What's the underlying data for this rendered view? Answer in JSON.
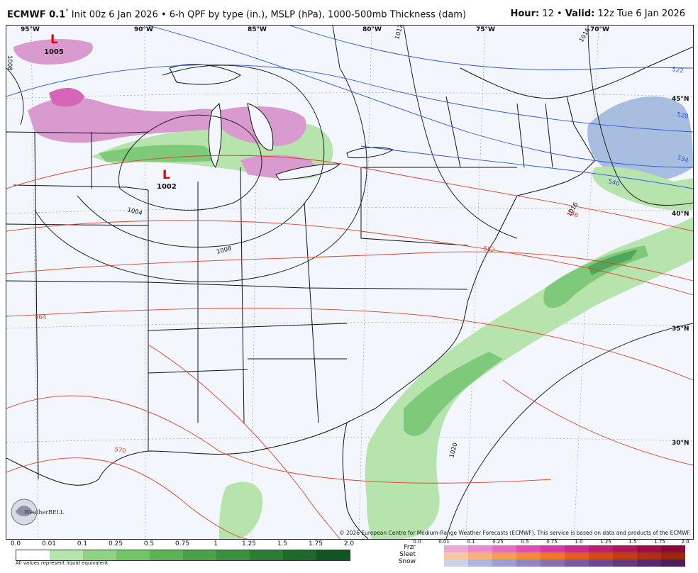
{
  "header": {
    "model": "ECMWF 0.1",
    "degree": "°",
    "description": "Init 00z 6 Jan 2026 • 6-h QPF by type (in.), MSLP (hPa), 1000-500mb Thickness (dam)",
    "hour_label": "Hour:",
    "hour_value": "12",
    "valid_label": "Valid:",
    "valid_value": "12z Tue 6 Jan 2026"
  },
  "map": {
    "longitudes": [
      "95°W",
      "90°W",
      "85°W",
      "80°W",
      "75°W",
      "70°W"
    ],
    "latitudes": [
      "45°N",
      "40°N",
      "35°N",
      "30°N"
    ],
    "lows": [
      {
        "symbol": "L",
        "pressure": "1005"
      },
      {
        "symbol": "L",
        "pressure": "1002"
      }
    ],
    "isobar_labels": [
      "1004",
      "1008",
      "1012",
      "1016",
      "1020",
      "1008",
      "1016"
    ],
    "thickness_labels_blue": [
      "522",
      "528",
      "534",
      "540"
    ],
    "thickness_labels_red": [
      "546",
      "552",
      "564",
      "570"
    ],
    "colors": {
      "rain": "#7ec97a",
      "rain_heavy": "#4fa85a",
      "snow": "#a8bee0",
      "mix": "#d99ad0",
      "mix_heavy": "#d665b8",
      "isobar": "#222222",
      "thickness_cold": "#2a55e0",
      "thickness_warm": "#e0402a",
      "low": "#e00000"
    }
  },
  "credit": "© 2026 European Centre for Medium-Range Weather Forecasts (ECMWF). This service is based on data and products of the ECMWF.",
  "logo_text": "WeatherBELL",
  "legend": {
    "qpf_ticks": [
      "0.0",
      "0.01",
      "0.1",
      "0.25",
      "0.5",
      "0.75",
      "1",
      "1.25",
      "1.5",
      "1.75",
      "2.0"
    ],
    "qpf_colors": [
      "#ffffff",
      "#b7e3ad",
      "#92d286",
      "#73c46a",
      "#5cb356",
      "#49a14a",
      "#3a8f40",
      "#2c7c36",
      "#1e692c",
      "#135522"
    ],
    "qpf_note": "All values represent liquid equivalent",
    "ptype_labels": [
      "Frzr",
      "Sleet",
      "Snow"
    ],
    "ptype_ticks": [
      "0.0",
      "0.01",
      "0.1",
      "0.25",
      "0.5",
      "0.75",
      "1.0",
      "1.25",
      "1.5",
      "1.75",
      "2.0"
    ],
    "ptype_colors": {
      "frzr": [
        "#eba9d6",
        "#e68ccb",
        "#e26fbf",
        "#dd51b2",
        "#d63aa3",
        "#c92d89",
        "#bb2170",
        "#ac1858",
        "#9c1046",
        "#8a0a36"
      ],
      "sleet": [
        "#f7c8a0",
        "#f7b27b",
        "#f59d58",
        "#f3893a",
        "#f07724",
        "#e35e1c",
        "#d34c16",
        "#c03e12",
        "#ad320d",
        "#982a0a"
      ],
      "snow": [
        "#c7d2ee",
        "#aab7e0",
        "#9aa0d6",
        "#8f86c8",
        "#8470b8",
        "#7a5aa8",
        "#6f4796",
        "#643684",
        "#582772",
        "#4c1b60"
      ]
    }
  }
}
